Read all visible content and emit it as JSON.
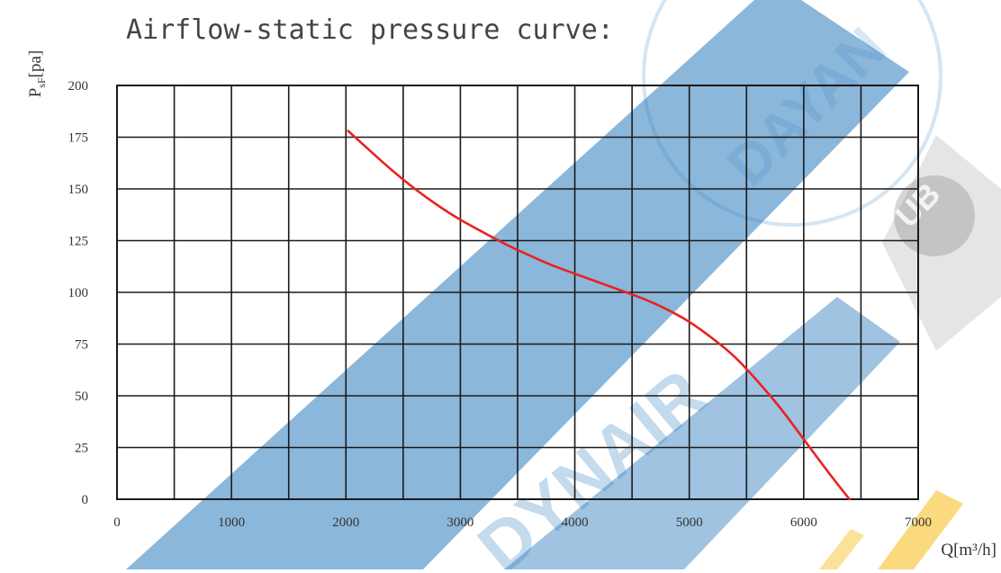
{
  "chart_data": {
    "type": "line",
    "title": "Airflow-static pressure curve:",
    "xlabel": "Q[m³/h]",
    "ylabel": "P",
    "ylabel_subscript": "sF",
    "ylabel_unit": "[pa]",
    "xlim": [
      0,
      7000
    ],
    "ylim": [
      0,
      200
    ],
    "x_ticks": [
      0,
      1000,
      2000,
      3000,
      4000,
      5000,
      6000,
      7000
    ],
    "y_ticks": [
      0,
      25,
      50,
      75,
      100,
      125,
      150,
      175,
      200
    ],
    "x_tick_labels": [
      "0",
      "1000",
      "2000",
      "3000",
      "4000",
      "5000",
      "6000",
      "7000"
    ],
    "y_tick_labels": [
      "0",
      "25",
      "50",
      "75",
      "100",
      "125",
      "150",
      "175",
      "200"
    ],
    "grid": true,
    "x_grid_step": 500,
    "y_grid_step": 25,
    "series": [
      {
        "color": "#e8231f",
        "x": [
          2020,
          2200,
          2400,
          2600,
          2800,
          3000,
          3200,
          3400,
          3600,
          3800,
          4000,
          4200,
          4400,
          4600,
          4800,
          5000,
          5200,
          5400,
          5600,
          5800,
          6000,
          6200,
          6400
        ],
        "y": [
          178,
          169,
          159,
          150,
          142,
          135,
          129,
          123,
          118,
          113,
          109,
          105,
          101,
          97,
          92,
          86,
          78,
          69,
          57,
          44,
          29,
          14,
          0
        ]
      }
    ]
  },
  "watermarks": {
    "band_color": "#2b7bbd",
    "accent_color": "#f5b400",
    "texts": [
      "DAYAN",
      "DYNAIR",
      "UB"
    ]
  }
}
